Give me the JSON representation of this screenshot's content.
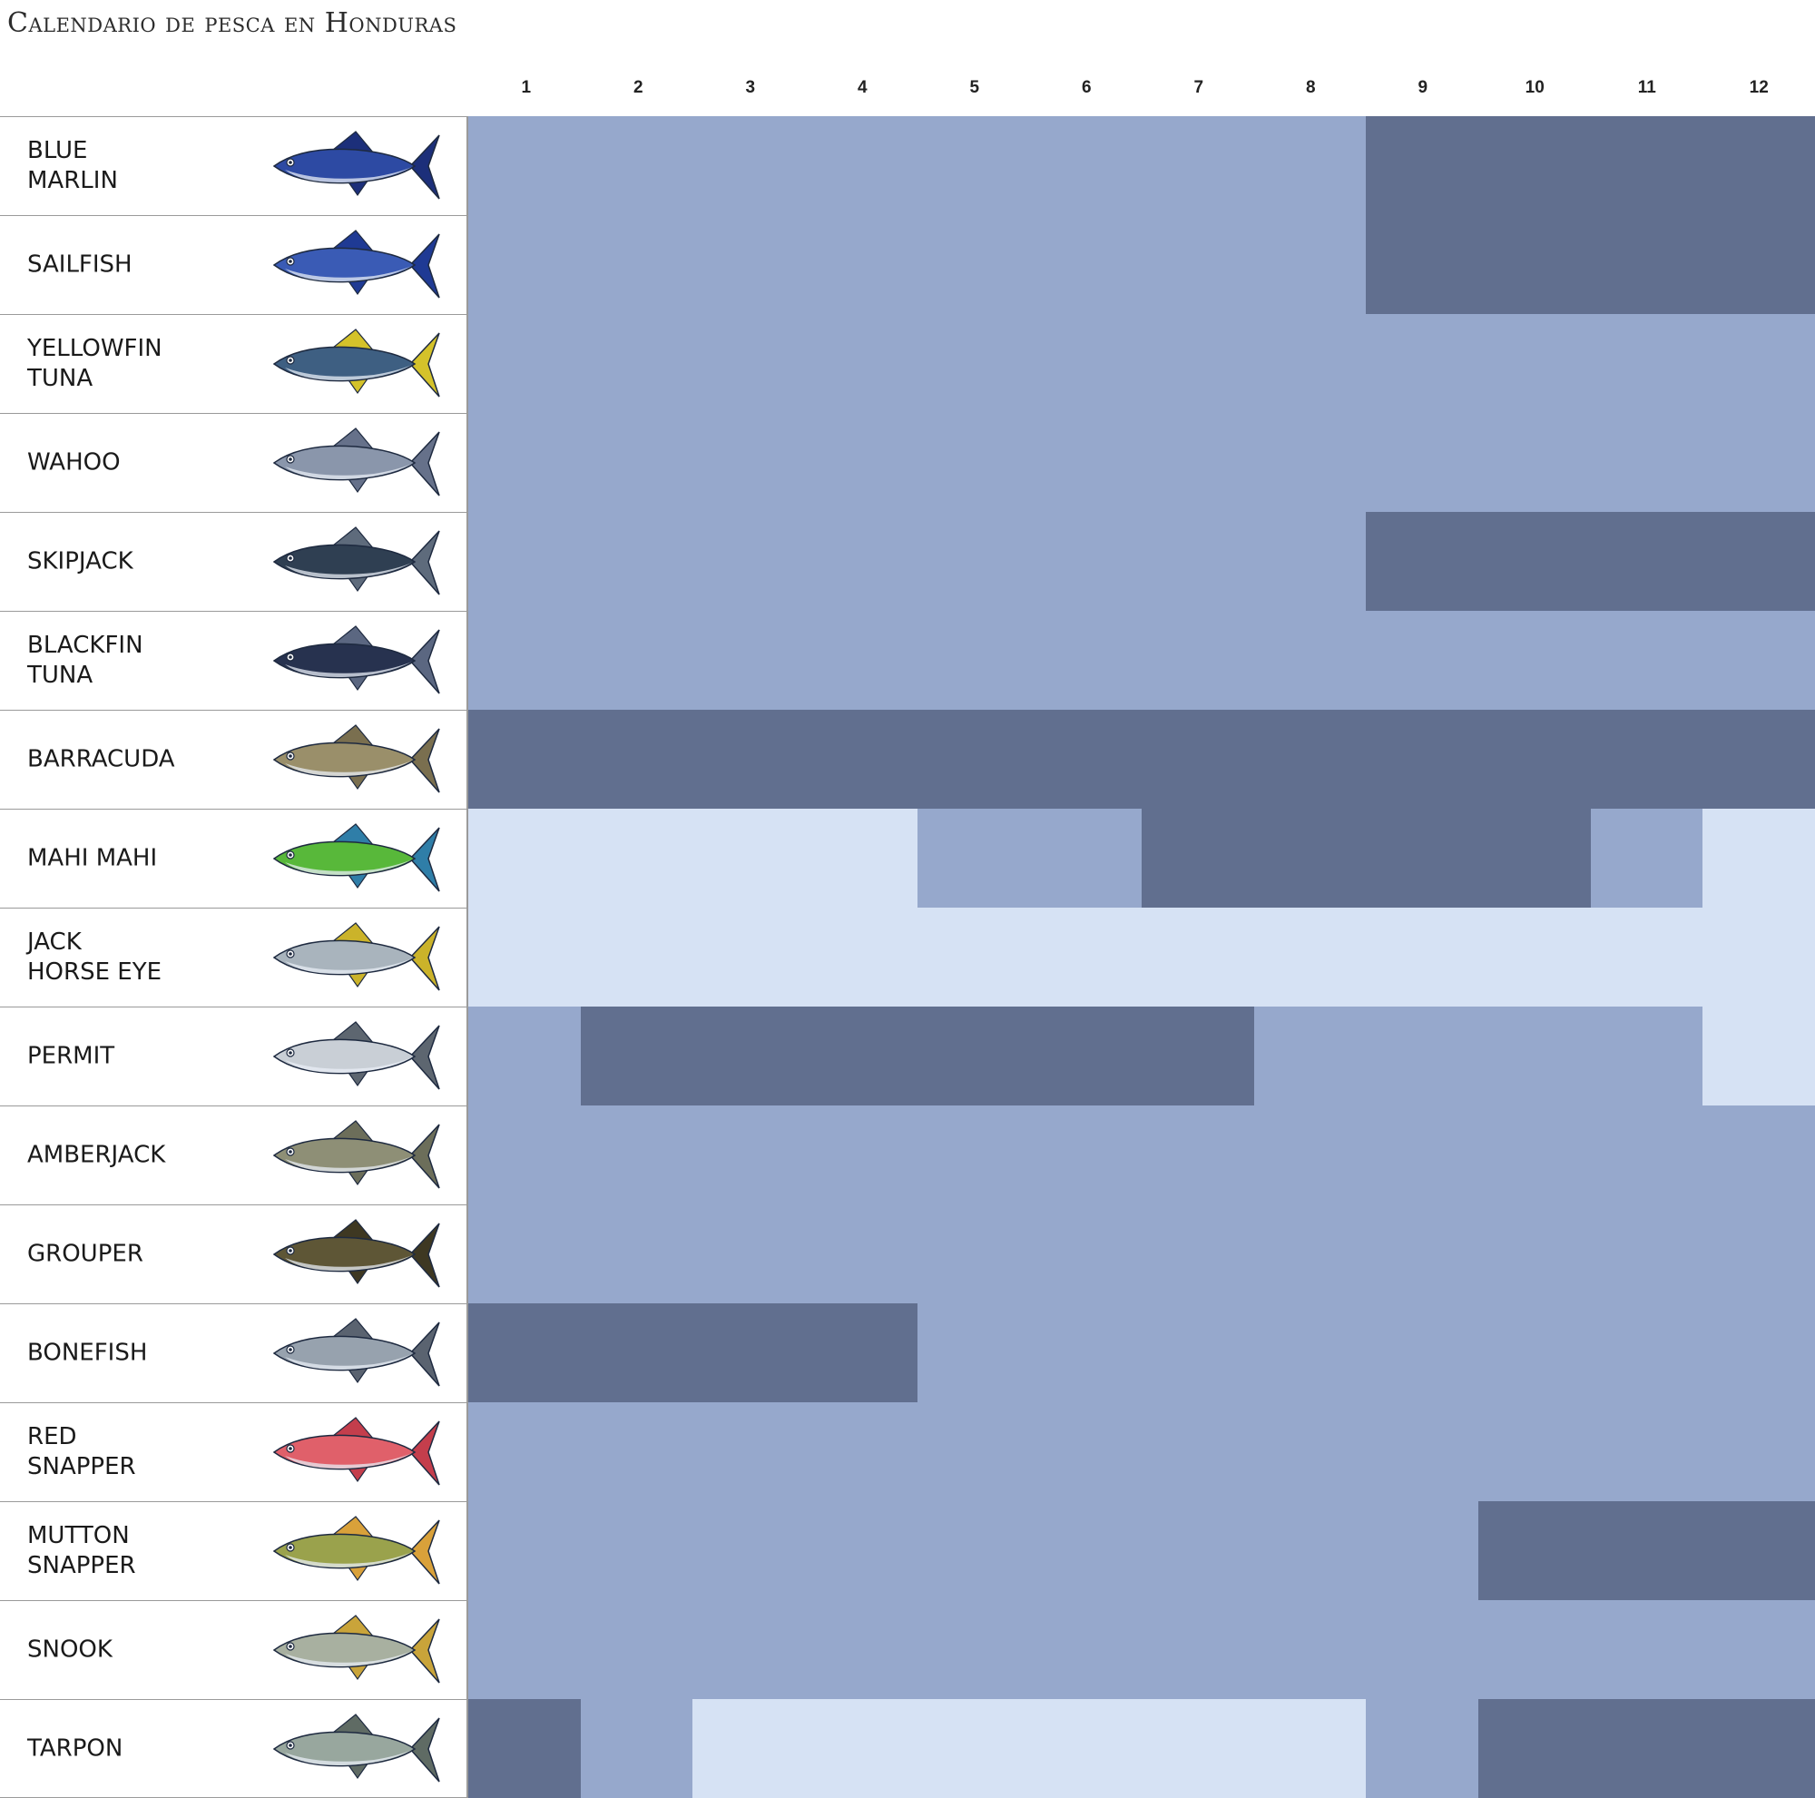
{
  "title": "Calendario de pesca en Honduras",
  "colors": {
    "level_1": "#d6e2f4",
    "level_2": "#96a8cc",
    "level_3": "#616f8f",
    "fish_outline": "#1e2a40",
    "fish_belly": "#e8eef5"
  },
  "chart_data": {
    "type": "heatmap",
    "title": "Calendario de pesca en Honduras",
    "xlabel": "",
    "ylabel": "",
    "months": [
      "1",
      "2",
      "3",
      "4",
      "5",
      "6",
      "7",
      "8",
      "9",
      "10",
      "11",
      "12"
    ],
    "legend": [],
    "rows": [
      {
        "name": "BLUE\nMARLIN",
        "icon": "blue-marlin-icon",
        "body": "#2d4aa3",
        "fin": "#1c2f7a",
        "levels": [
          2,
          2,
          2,
          2,
          2,
          2,
          2,
          2,
          3,
          3,
          3,
          3
        ]
      },
      {
        "name": "SAILFISH",
        "icon": "sailfish-icon",
        "body": "#3a5bb5",
        "fin": "#1f3a94",
        "levels": [
          2,
          2,
          2,
          2,
          2,
          2,
          2,
          2,
          3,
          3,
          3,
          3
        ]
      },
      {
        "name": "YELLOWFIN\nTUNA",
        "icon": "yellowfin-tuna-icon",
        "body": "#3e5f82",
        "fin": "#d4c22a",
        "levels": [
          2,
          2,
          2,
          2,
          2,
          2,
          2,
          2,
          2,
          2,
          2,
          2
        ]
      },
      {
        "name": "WAHOO",
        "icon": "wahoo-icon",
        "body": "#8a96ab",
        "fin": "#66718a",
        "levels": [
          2,
          2,
          2,
          2,
          2,
          2,
          2,
          2,
          2,
          2,
          2,
          2
        ]
      },
      {
        "name": "SKIPJACK",
        "icon": "skipjack-icon",
        "body": "#2f3f52",
        "fin": "#5e6b7c",
        "levels": [
          2,
          2,
          2,
          2,
          2,
          2,
          2,
          2,
          3,
          3,
          3,
          3
        ]
      },
      {
        "name": "BLACKFIN\nTUNA",
        "icon": "blackfin-tuna-icon",
        "body": "#27324f",
        "fin": "#5b6781",
        "levels": [
          2,
          2,
          2,
          2,
          2,
          2,
          2,
          2,
          2,
          2,
          2,
          2
        ]
      },
      {
        "name": "BARRACUDA",
        "icon": "barracuda-icon",
        "body": "#9a8f6a",
        "fin": "#7a6f4f",
        "levels": [
          3,
          3,
          3,
          3,
          3,
          3,
          3,
          3,
          3,
          3,
          3,
          3
        ]
      },
      {
        "name": "MAHI MAHI",
        "icon": "mahi-mahi-icon",
        "body": "#58b83a",
        "fin": "#2f7ea8",
        "levels": [
          1,
          1,
          1,
          1,
          2,
          2,
          3,
          3,
          3,
          3,
          2,
          1
        ]
      },
      {
        "name": "JACK\nHORSE EYE",
        "icon": "horse-eye-jack-icon",
        "body": "#a9b4bd",
        "fin": "#cbb32a",
        "levels": [
          1,
          1,
          1,
          1,
          1,
          1,
          1,
          1,
          1,
          1,
          1,
          1
        ]
      },
      {
        "name": "PERMIT",
        "icon": "permit-icon",
        "body": "#c9cfd6",
        "fin": "#5d6670",
        "levels": [
          2,
          3,
          3,
          3,
          3,
          3,
          3,
          2,
          2,
          2,
          2,
          1
        ]
      },
      {
        "name": "AMBERJACK",
        "icon": "amberjack-icon",
        "body": "#8e8f76",
        "fin": "#6c6e5a",
        "levels": [
          2,
          2,
          2,
          2,
          2,
          2,
          2,
          2,
          2,
          2,
          2,
          2
        ]
      },
      {
        "name": "GROUPER",
        "icon": "grouper-icon",
        "body": "#5e5636",
        "fin": "#3e3822",
        "levels": [
          2,
          2,
          2,
          2,
          2,
          2,
          2,
          2,
          2,
          2,
          2,
          2
        ]
      },
      {
        "name": "BONEFISH",
        "icon": "bonefish-icon",
        "body": "#97a2ae",
        "fin": "#5a6370",
        "levels": [
          3,
          3,
          3,
          3,
          2,
          2,
          2,
          2,
          2,
          2,
          2,
          2
        ]
      },
      {
        "name": "RED\nSNAPPER",
        "icon": "red-snapper-icon",
        "body": "#e0606a",
        "fin": "#c43e4c",
        "levels": [
          2,
          2,
          2,
          2,
          2,
          2,
          2,
          2,
          2,
          2,
          2,
          2
        ]
      },
      {
        "name": "MUTTON\nSNAPPER",
        "icon": "mutton-snapper-icon",
        "body": "#9aa24c",
        "fin": "#d9a13a",
        "levels": [
          2,
          2,
          2,
          2,
          2,
          2,
          2,
          2,
          2,
          3,
          3,
          3
        ]
      },
      {
        "name": "SNOOK",
        "icon": "snook-icon",
        "body": "#a8b0a0",
        "fin": "#c9a43a",
        "levels": [
          2,
          2,
          2,
          2,
          2,
          2,
          2,
          2,
          2,
          2,
          2,
          2
        ]
      },
      {
        "name": "TARPON",
        "icon": "tarpon-icon",
        "body": "#98a79e",
        "fin": "#5f6b64",
        "levels": [
          3,
          2,
          1,
          1,
          1,
          1,
          1,
          1,
          2,
          3,
          3,
          3
        ]
      }
    ]
  }
}
